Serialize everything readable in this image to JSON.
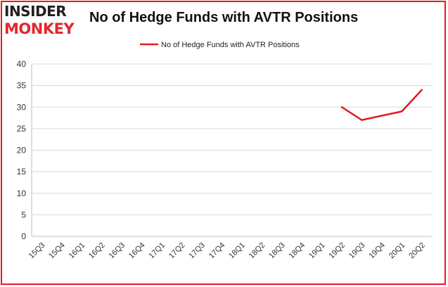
{
  "header": {
    "logo_top": "INSIDER",
    "logo_bottom": "MONKEY",
    "title": "No of Hedge Funds with AVTR Positions"
  },
  "colors": {
    "series": "#e8191f",
    "grid": "#d9d9d9",
    "border": "#e8191f",
    "logo_dark": "#231f20",
    "logo_red": "#e3262e"
  },
  "chart_data": {
    "type": "line",
    "title": "No of Hedge Funds with AVTR Positions",
    "categories": [
      "15Q3",
      "15Q4",
      "16Q1",
      "16Q2",
      "16Q3",
      "16Q4",
      "17Q1",
      "17Q2",
      "17Q3",
      "17Q4",
      "18Q1",
      "18Q2",
      "18Q3",
      "18Q4",
      "19Q1",
      "19Q2",
      "19Q3",
      "19Q4",
      "20Q1",
      "20Q2"
    ],
    "series": [
      {
        "name": "No of Hedge Funds with AVTR Positions",
        "values": [
          null,
          null,
          null,
          null,
          null,
          null,
          null,
          null,
          null,
          null,
          null,
          null,
          null,
          null,
          null,
          30,
          27,
          28,
          29,
          34
        ]
      }
    ],
    "yticks": [
      0,
      5,
      10,
      15,
      20,
      25,
      30,
      35,
      40
    ],
    "ylim": [
      0,
      40
    ],
    "grid": true,
    "legend": "top-center"
  }
}
